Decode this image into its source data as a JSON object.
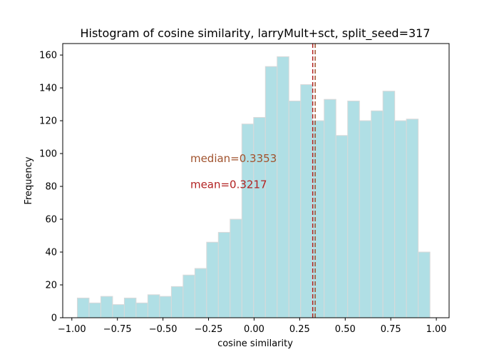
{
  "chart_data": {
    "type": "bar",
    "title": "Histogram of cosine similarity, larryMult+sct, split_seed=317",
    "xlabel": "cosine similarity",
    "ylabel": "Frequency",
    "xlim": [
      -1.05,
      1.07
    ],
    "ylim": [
      0,
      167
    ],
    "x_ticks": [
      -1.0,
      -0.75,
      -0.5,
      -0.25,
      0.0,
      0.25,
      0.5,
      0.75,
      1.0
    ],
    "x_tick_labels": [
      "−1.00",
      "−0.75",
      "−0.50",
      "−0.25",
      "0.00",
      "0.25",
      "0.50",
      "0.75",
      "1.00"
    ],
    "y_ticks": [
      0,
      20,
      40,
      60,
      80,
      100,
      120,
      140,
      160
    ],
    "y_tick_labels": [
      "0",
      "20",
      "40",
      "60",
      "80",
      "100",
      "120",
      "140",
      "160"
    ],
    "bin_start": -0.97,
    "bin_width": 0.0645,
    "values": [
      12,
      9,
      13,
      8,
      12,
      9,
      14,
      13,
      19,
      26,
      30,
      46,
      52,
      60,
      118,
      122,
      153,
      159,
      132,
      142,
      120,
      133,
      111,
      132,
      120,
      126,
      138,
      120,
      121,
      40
    ],
    "bar_color": "#b0dfe5",
    "bar_edge_color": "#d9d9d9",
    "median": {
      "value": 0.3353,
      "label": "median=0.3353",
      "color": "#a0522d"
    },
    "mean": {
      "value": 0.3217,
      "label": "mean=0.3217",
      "color": "#b22222"
    },
    "annotation_y": {
      "median": 97,
      "mean": 81
    },
    "annotation_x": -0.35
  }
}
